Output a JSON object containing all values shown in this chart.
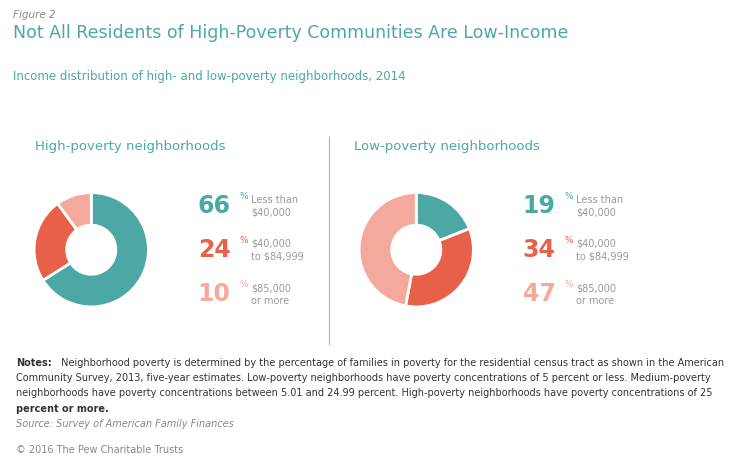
{
  "figure_label": "Figure 2",
  "title": "Not All Residents of High-Poverty Communities Are Low-Income",
  "subtitle": "Income distribution of high- and low-poverty neighborhoods, 2014",
  "panel_bg": "#e8e8e8",
  "fig_bg": "#ffffff",
  "teal_color": "#4ba8a4",
  "red_color": "#e8604a",
  "pink_color": "#f5a99c",
  "high_poverty": {
    "title": "High-poverty neighborhoods",
    "values": [
      66,
      24,
      10
    ],
    "colors": [
      "#4ba8a4",
      "#e8604a",
      "#f5a99c"
    ],
    "pcts": [
      "66",
      "24",
      "10"
    ],
    "pct_colors": [
      "#4ba8a4",
      "#e8604a",
      "#f5a99c"
    ],
    "labels": [
      "Less than\n$40,000",
      "$40,000\nto $84,999",
      "$85,000\nor more"
    ]
  },
  "low_poverty": {
    "title": "Low-poverty neighborhoods",
    "values": [
      19,
      34,
      47
    ],
    "colors": [
      "#4ba8a4",
      "#e8604a",
      "#f5a99c"
    ],
    "pcts": [
      "19",
      "34",
      "47"
    ],
    "pct_colors": [
      "#4ba8a4",
      "#e8604a",
      "#f5a99c"
    ],
    "labels": [
      "Less than\n$40,000",
      "$40,000\nto $84,999",
      "$85,000\nor more"
    ]
  },
  "notes_bold": "Notes:",
  "notes_body": " Neighborhood poverty is determined by the percentage of families in poverty for the residential census tract as shown in the American Community Survey, 2013, five-year estimates. Low-poverty neighborhoods have poverty concentrations of 5 percent or less. Medium-poverty neighborhoods have poverty concentrations between 5.01 and 24.99 percent. High-poverty neighborhoods have poverty concentrations of 25 percent or more.",
  "notes_bold_part2": "percent or more.",
  "source": "Source: Survey of American Family Finances",
  "copyright": "© 2016 The Pew Charitable Trusts"
}
